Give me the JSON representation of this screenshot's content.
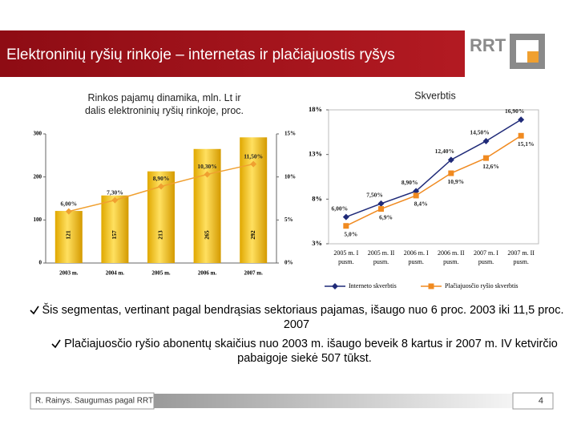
{
  "header": {
    "title": "Elektroninių ryšių rinkoje – internetas ir plačiajuostis ryšys",
    "logo": "RRT"
  },
  "chart_data": [
    {
      "type": "bar",
      "title": "Rinkos pajamų dinamika, mln. Lt ir dalis elektroninių ryšių rinkoje, proc.",
      "categories": [
        "2003 m.",
        "2004 m.",
        "2005 m.",
        "2006 m.",
        "2007 m."
      ],
      "series": [
        {
          "type": "bar",
          "color": "#f2bd1c",
          "values": [
            121,
            157,
            213,
            265,
            292
          ]
        },
        {
          "type": "line",
          "axis": "y2",
          "color": "#f0a030",
          "values": [
            6.0,
            7.3,
            8.9,
            10.3,
            11.5
          ],
          "value_labels": [
            "6,00%",
            "7,30%",
            "8,90%",
            "10,30%",
            "11,50%"
          ]
        }
      ],
      "ylim": [
        0,
        300
      ],
      "yticks": [
        0,
        100,
        200,
        300
      ],
      "y2lim": [
        0,
        15
      ],
      "y2ticks": [
        {
          "value": 0,
          "label": "0%"
        },
        {
          "value": 5,
          "label": "5%"
        },
        {
          "value": 10,
          "label": "10%"
        },
        {
          "value": 15,
          "label": "15%"
        }
      ]
    },
    {
      "type": "line",
      "title": "Skverbtis",
      "categories": [
        "2005 m. I pusm.",
        "2005 m. II pusm.",
        "2006 m. I pusm.",
        "2006 m. II pusm.",
        "2007 m. I pusm.",
        "2007 m. II pusm."
      ],
      "series": [
        {
          "name": "Interneto skverbtis",
          "color": "#1f2a78",
          "marker": "diamond",
          "values": [
            6.0,
            7.5,
            8.9,
            12.4,
            14.5,
            16.9
          ],
          "value_labels": [
            "6,00%",
            "7,50%",
            "8,90%",
            "12,40%",
            "14,50%",
            "16,90%"
          ]
        },
        {
          "name": "Plačiajuosčio ryšio skverbtis",
          "color": "#f08a20",
          "marker": "square",
          "values": [
            5.0,
            6.9,
            8.4,
            10.9,
            12.6,
            15.1
          ],
          "value_labels": [
            "5,0%",
            "6,9%",
            "8,4%",
            "10,9%",
            "12,6%",
            "15,1%"
          ]
        }
      ],
      "ylim": [
        3,
        18
      ],
      "yticks": [
        {
          "value": 3,
          "label": "3%"
        },
        {
          "value": 8,
          "label": "8%"
        },
        {
          "value": 13,
          "label": "13%"
        },
        {
          "value": 18,
          "label": "18%"
        }
      ],
      "legend": "bottom"
    }
  ],
  "bullets": [
    "Šis segmentas, vertinant pagal bendrąsias sektoriaus pajamas, išaugo nuo 6 proc. 2003 iki 11,5 proc. 2007",
    "Plačiajuosčio ryšio abonentų skaičius nuo 2003 m. išaugo beveik 8 kartus ir 2007 m. IV ketvirčio pabaigoje siekė 507 tūkst."
  ],
  "footer": {
    "source": "R. Rainys. Saugumas pagal RRT",
    "page": "4"
  }
}
